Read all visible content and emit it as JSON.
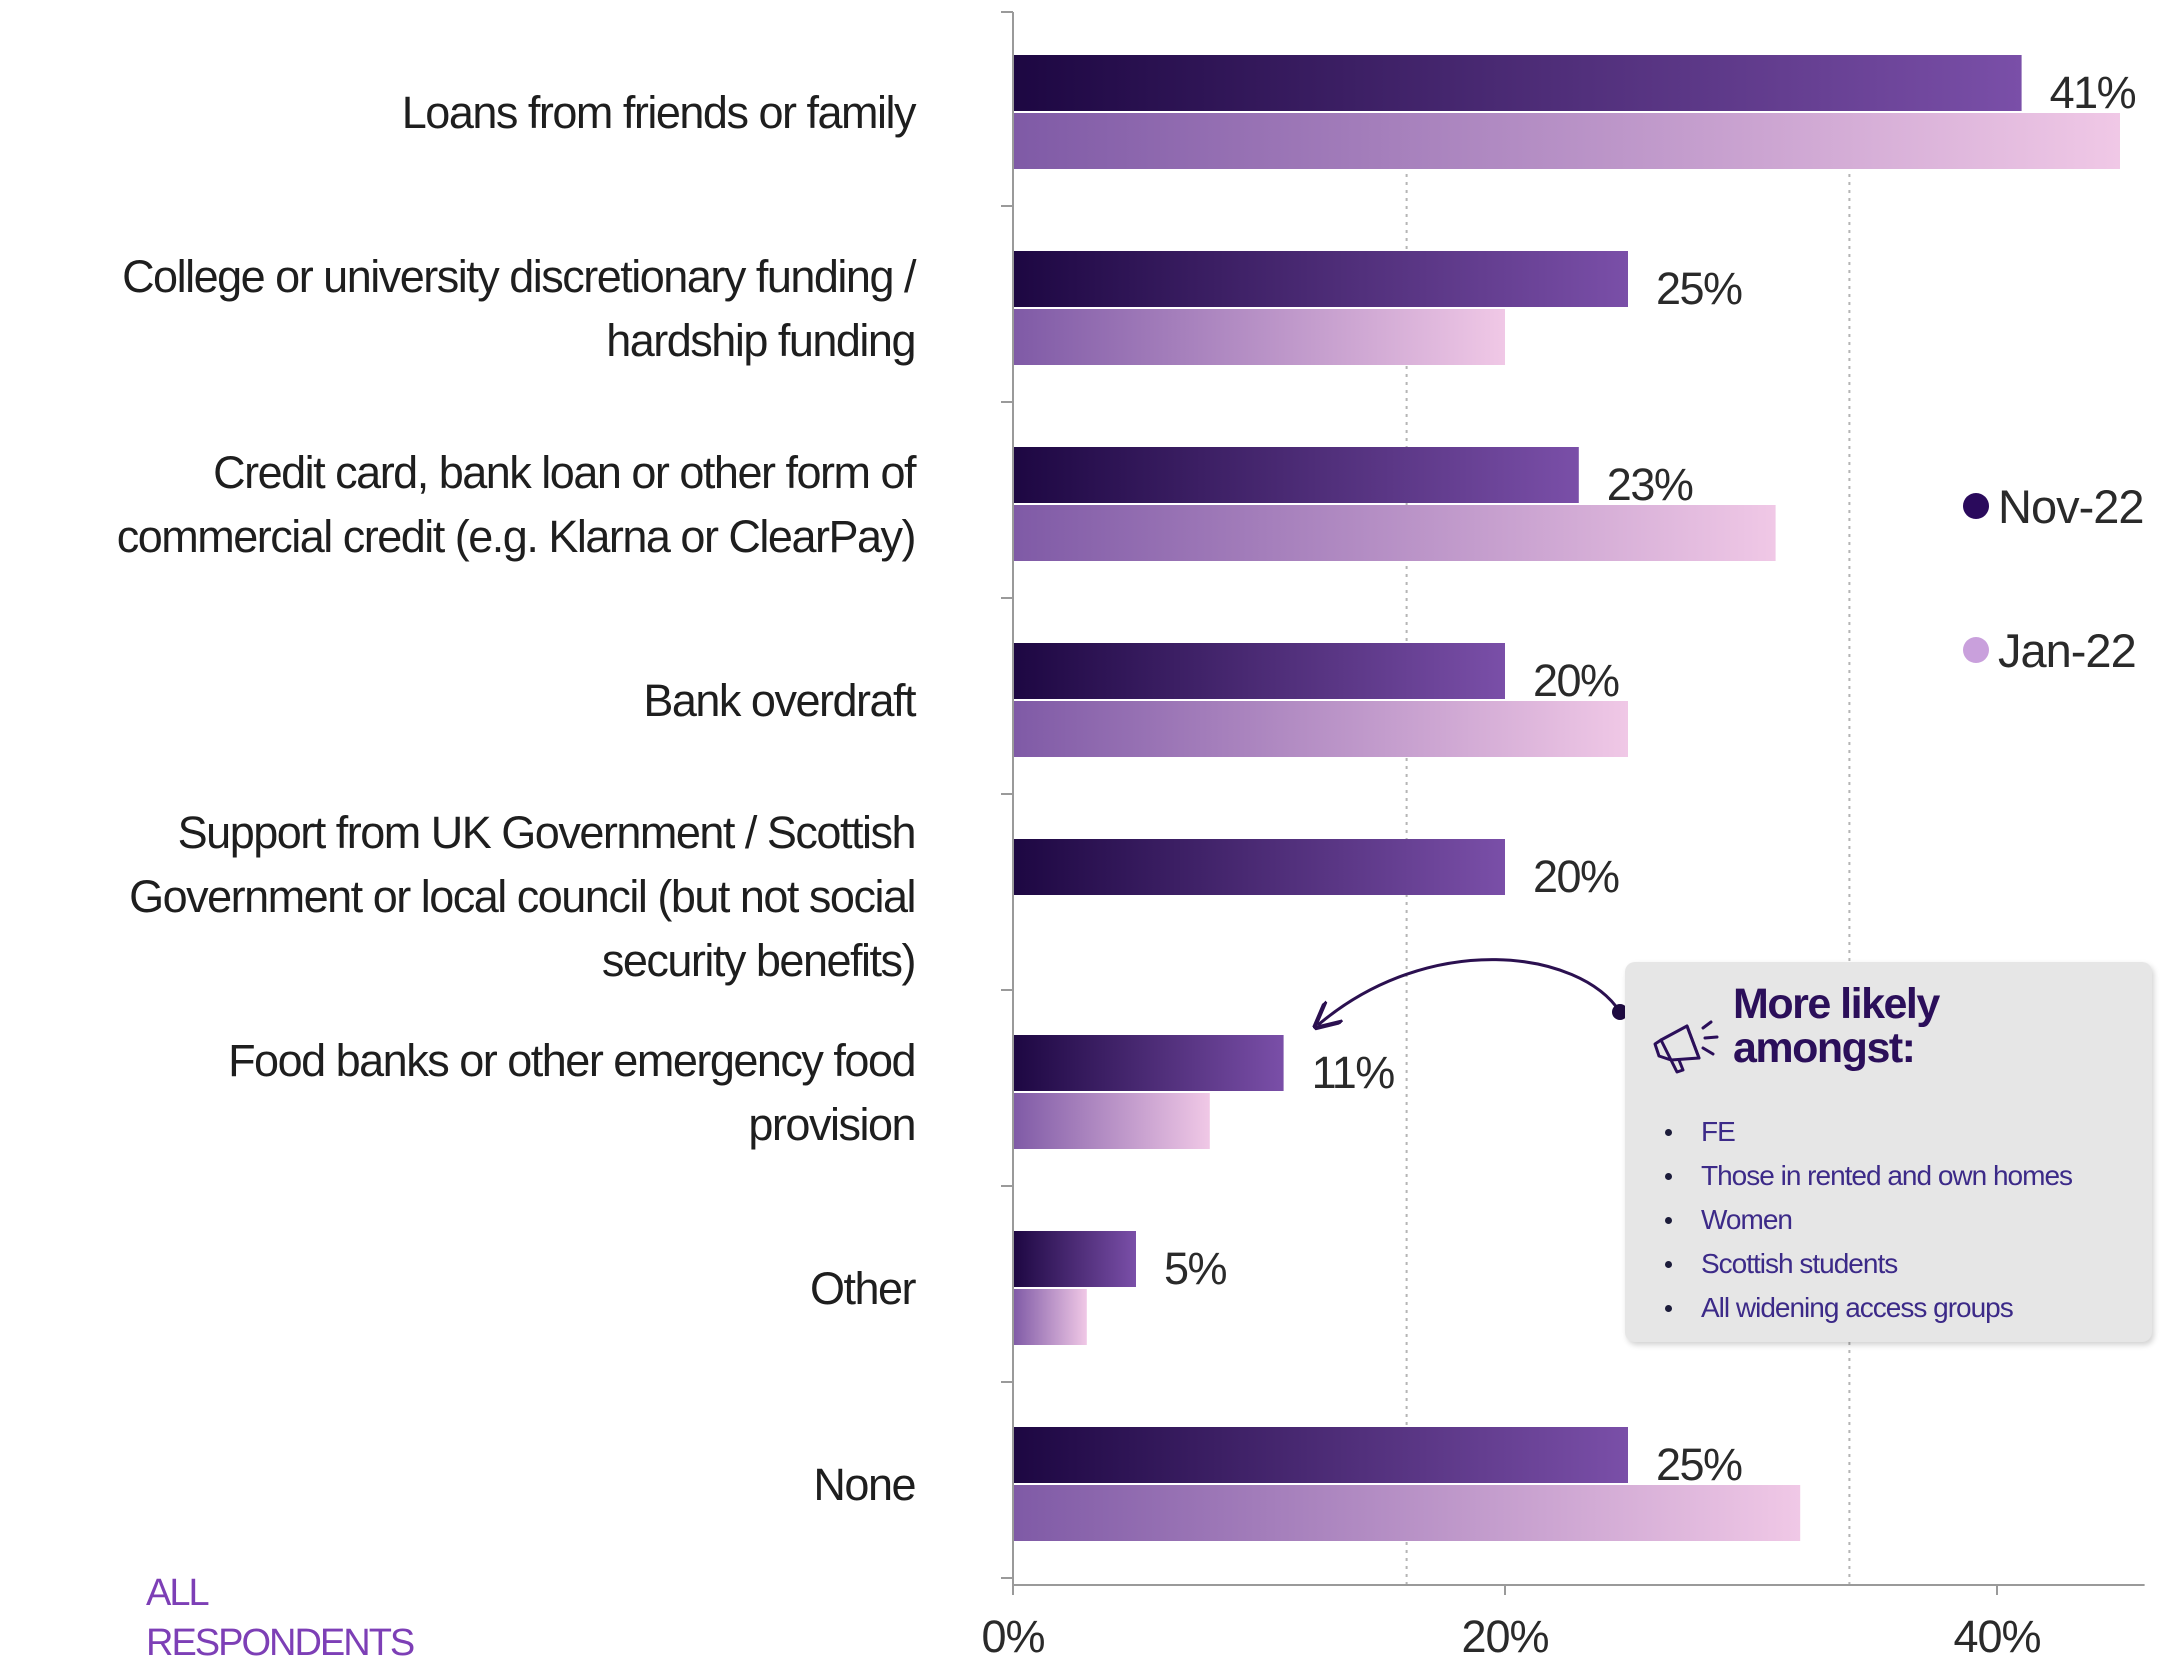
{
  "chart_data": {
    "type": "bar",
    "orientation": "horizontal",
    "categories": [
      [
        "Loans from friends or family"
      ],
      [
        "College or university discretionary funding /",
        "hardship funding"
      ],
      [
        "Credit card, bank loan or other form of",
        "commercial credit (e.g. Klarna or ClearPay)"
      ],
      [
        "Bank overdraft"
      ],
      [
        "Support from UK Government / Scottish",
        "Government or local council (but not social",
        "security benefits)"
      ],
      [
        "Food banks or other emergency food",
        "provision"
      ],
      [
        "Other"
      ],
      [
        "None"
      ]
    ],
    "series": [
      {
        "name": "Nov-22",
        "values": [
          41,
          25,
          23,
          20,
          20,
          11,
          5,
          25
        ],
        "labels": [
          "41%",
          "25%",
          "23%",
          "20%",
          "20%",
          "11%",
          "5%",
          "25%"
        ]
      },
      {
        "name": "Jan-22",
        "values": [
          45,
          20,
          31,
          25,
          null,
          8,
          3,
          32
        ]
      }
    ],
    "x_ticks": [
      "0%",
      "20%",
      "40%"
    ],
    "xlim": [
      0,
      46
    ],
    "grid": "dotted vertical",
    "legend_position": "right"
  },
  "colors": {
    "nov_start": "#1d0742",
    "nov_end": "#7a4fa8",
    "jan_start": "#7f5aa6",
    "jan_end": "#f0c8e6",
    "legend_nov": "#2a0a5c",
    "legend_jan": "#c9a0dc"
  },
  "base_label": [
    "ALL",
    "RESPONDENTS"
  ],
  "callout": {
    "icon": "megaphone-icon",
    "title": [
      "More likely",
      "amongst:"
    ],
    "items": [
      "FE",
      "Those in rented and own homes",
      "Women",
      "Scottish students",
      "All widening access groups"
    ]
  }
}
